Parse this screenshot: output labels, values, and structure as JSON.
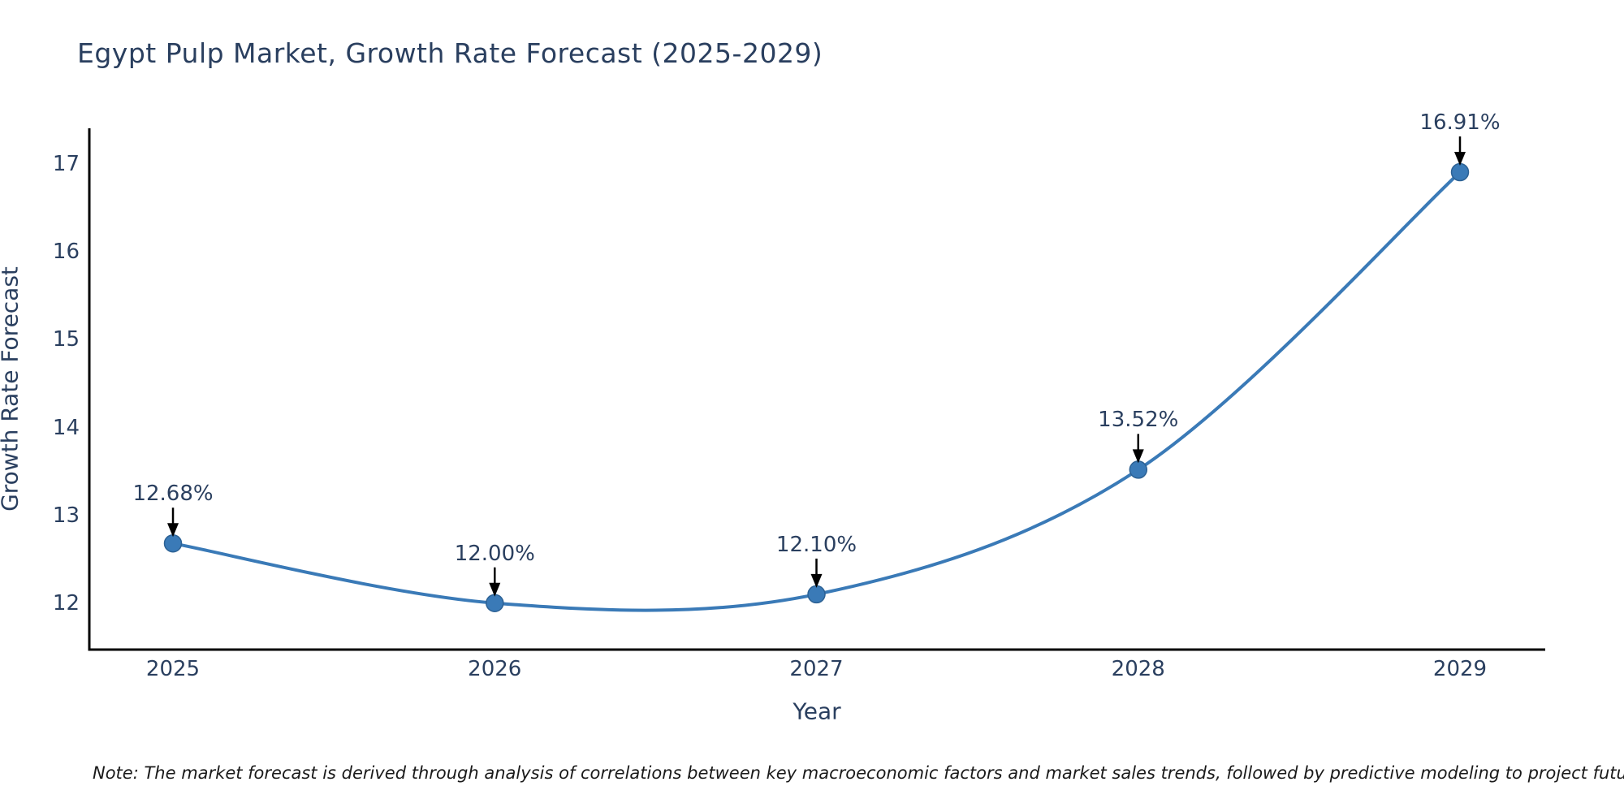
{
  "chart_data": {
    "type": "line",
    "title": "Egypt Pulp Market, Growth Rate Forecast (2025-2029)",
    "xlabel": "Year",
    "ylabel": "Growth Rate Forecast",
    "x": [
      2025,
      2026,
      2027,
      2028,
      2029
    ],
    "y": [
      12.68,
      12.0,
      12.1,
      13.52,
      16.91
    ],
    "point_labels": [
      "12.68%",
      "12.00%",
      "12.10%",
      "13.52%",
      "16.91%"
    ],
    "x_tick_labels": [
      "2025",
      "2026",
      "2027",
      "2028",
      "2029"
    ],
    "y_tick_labels": [
      "12",
      "13",
      "14",
      "15",
      "16",
      "17"
    ],
    "y_tick_values": [
      12,
      13,
      14,
      15,
      16,
      17
    ],
    "xlim": [
      2024.74,
      2029.265
    ],
    "ylim": [
      11.47,
      17.41
    ],
    "line_shape": "spline",
    "grid": false,
    "legend": "none",
    "line_color": "#3a7ab7",
    "marker_color": "#3a7ab7",
    "marker_edge_color": "#2c6194",
    "axis_line_color": "#000000",
    "text_color": "#2a3f5f",
    "annotation_arrow_color": "#000000",
    "note": "Note: The market forecast is derived through analysis of correlations between key macroeconomic factors and market sales trends, followed by predictive modeling to project future sales"
  }
}
